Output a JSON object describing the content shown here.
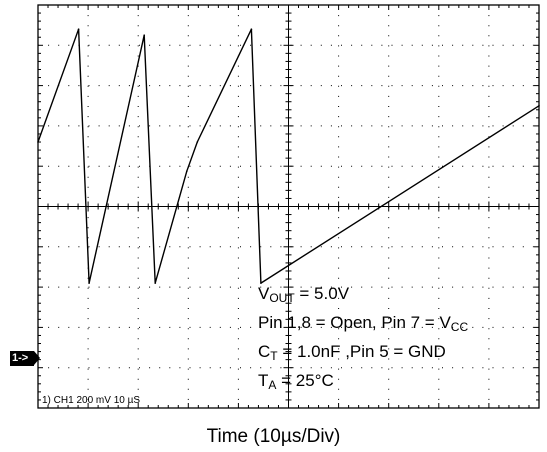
{
  "annotations": {
    "vout": {
      "label": "V",
      "sub": "OUT",
      "text": " = 5.0V"
    },
    "pins": {
      "text": "Pin 1,8 = Open, Pin 7 = V",
      "sub": "CC"
    },
    "ct": {
      "label": "C",
      "sub": "T",
      "text": " = 1.0nF ,Pin 5 = GND"
    },
    "ta": {
      "label": "T",
      "sub": "A",
      "text": " = 25°C"
    }
  },
  "channel_marker": "1->",
  "channel_readout": "1) CH1  200 mV   10 µS",
  "x_caption": "Time  (10µs/Div)",
  "colors": {
    "trace": "#000000",
    "grid": "#000000",
    "background": "#ffffff"
  },
  "chart_data": {
    "type": "line",
    "title": "",
    "xlabel": "Time  (10µs/Div)",
    "ylabel": "",
    "x_unit": "µs",
    "xlim": [
      0,
      100
    ],
    "ylim": [
      -1000,
      1000
    ],
    "divisions": {
      "x": 10,
      "y": 10
    },
    "grid": true,
    "series": [
      {
        "name": "",
        "x": [
          0,
          8.1,
          10.2,
          21.2,
          23.4,
          29.7,
          31.8,
          42.6,
          44.5,
          100
        ],
        "y": [
          320,
          880,
          -380,
          850,
          -380,
          175,
          320,
          880,
          -380,
          500
        ]
      }
    ]
  }
}
